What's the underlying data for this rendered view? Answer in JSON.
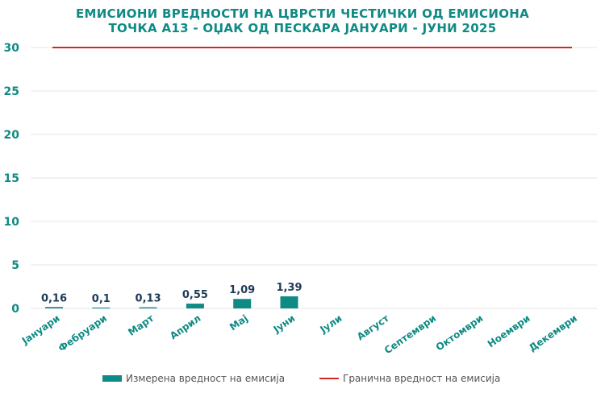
{
  "chart_data": {
    "type": "bar",
    "title_lines": [
      "ЕМИСИОНИ ВРЕДНОСТИ НА ЦВРСТИ ЧЕСТИЧКИ ОД ЕМИСИОНА",
      "ТОЧКА А13 - ОЏАК ОД ПЕСКАРА ЈАНУАРИ - ЈУНИ 2025"
    ],
    "categories": [
      "Јануари",
      "Фебруари",
      "Март",
      "Април",
      "Мај",
      "Јуни",
      "Јули",
      "Август",
      "Септември",
      "Октомври",
      "Ноември",
      "Декември"
    ],
    "series": [
      {
        "name": "Измерена вредност на емисија",
        "type": "bar",
        "color": "#0f8a84",
        "values": [
          0.16,
          0.1,
          0.13,
          0.55,
          1.09,
          1.39,
          null,
          null,
          null,
          null,
          null,
          null
        ],
        "labels": [
          "0,16",
          "0,1",
          "0,13",
          "0,55",
          "1,09",
          "1,39",
          "",
          "",
          "",
          "",
          "",
          ""
        ]
      },
      {
        "name": "Гранична вредност на емисија",
        "type": "line",
        "color": "#d62728",
        "values": [
          30,
          30,
          30,
          30,
          30,
          30,
          30,
          30,
          30,
          30,
          30,
          30
        ]
      }
    ],
    "ylim": [
      0,
      30
    ],
    "yticks": [
      "0",
      "5",
      "10",
      "15",
      "20",
      "25",
      "30"
    ],
    "grid": true,
    "legend": "bottom"
  }
}
